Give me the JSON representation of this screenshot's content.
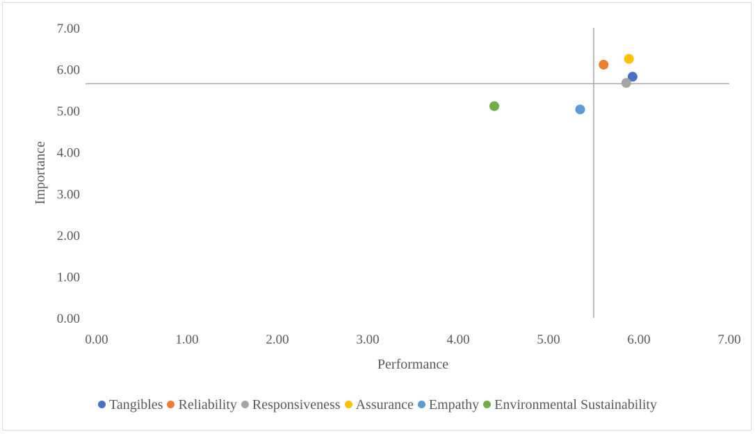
{
  "chart_data": {
    "type": "scatter",
    "title": "",
    "xlabel": "Performance",
    "ylabel": "Importance",
    "xlim": [
      0,
      7
    ],
    "ylim": [
      0,
      7
    ],
    "xticks": [
      "0.00",
      "1.00",
      "2.00",
      "3.00",
      "4.00",
      "5.00",
      "6.00",
      "7.00"
    ],
    "yticks": [
      "0.00",
      "1.00",
      "2.00",
      "3.00",
      "4.00",
      "5.00",
      "6.00",
      "7.00"
    ],
    "grid": false,
    "legend_position": "bottom",
    "reference_lines": {
      "x": 5.5,
      "y": 5.65
    },
    "series": [
      {
        "name": "Tangibles",
        "color": "#4472c4",
        "x": 5.93,
        "y": 5.82
      },
      {
        "name": "Reliability",
        "color": "#ed7d31",
        "x": 5.61,
        "y": 6.11
      },
      {
        "name": "Responsiveness",
        "color": "#a5a5a5",
        "x": 5.86,
        "y": 5.67
      },
      {
        "name": "Assurance",
        "color": "#ffc000",
        "x": 5.89,
        "y": 6.25
      },
      {
        "name": "Empathy",
        "color": "#5b9bd5",
        "x": 5.35,
        "y": 5.03
      },
      {
        "name": "Environmental Sustainability",
        "color": "#70ad47",
        "x": 4.4,
        "y": 5.11
      }
    ]
  }
}
